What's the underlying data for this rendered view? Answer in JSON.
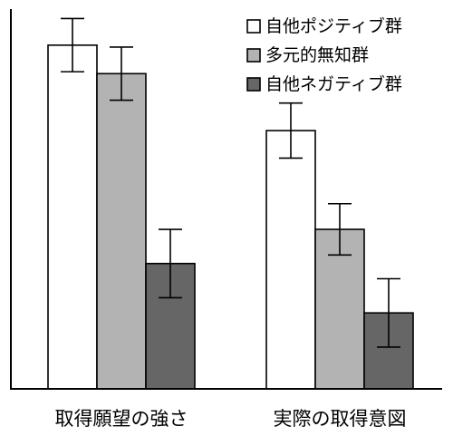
{
  "chart_data": {
    "type": "bar",
    "title": "",
    "xlabel": "",
    "ylabel": "",
    "categories": [
      "取得願望の強さ",
      "実際の取得意図"
    ],
    "series": [
      {
        "name": "自他ポジティブ群",
        "color": "#ffffff",
        "values": [
          3.62,
          2.72
        ],
        "errors": [
          0.28,
          0.29
        ]
      },
      {
        "name": "多元的無知群",
        "color": "#b3b3b3",
        "values": [
          3.32,
          1.68
        ],
        "errors": [
          0.28,
          0.27
        ]
      },
      {
        "name": "自他ネガティブ群",
        "color": "#666666",
        "values": [
          1.32,
          0.8
        ],
        "errors": [
          0.36,
          0.36
        ]
      }
    ],
    "ylim": [
      0,
      4
    ],
    "grid": false,
    "legend_position": "top-right",
    "error_bars": true
  }
}
